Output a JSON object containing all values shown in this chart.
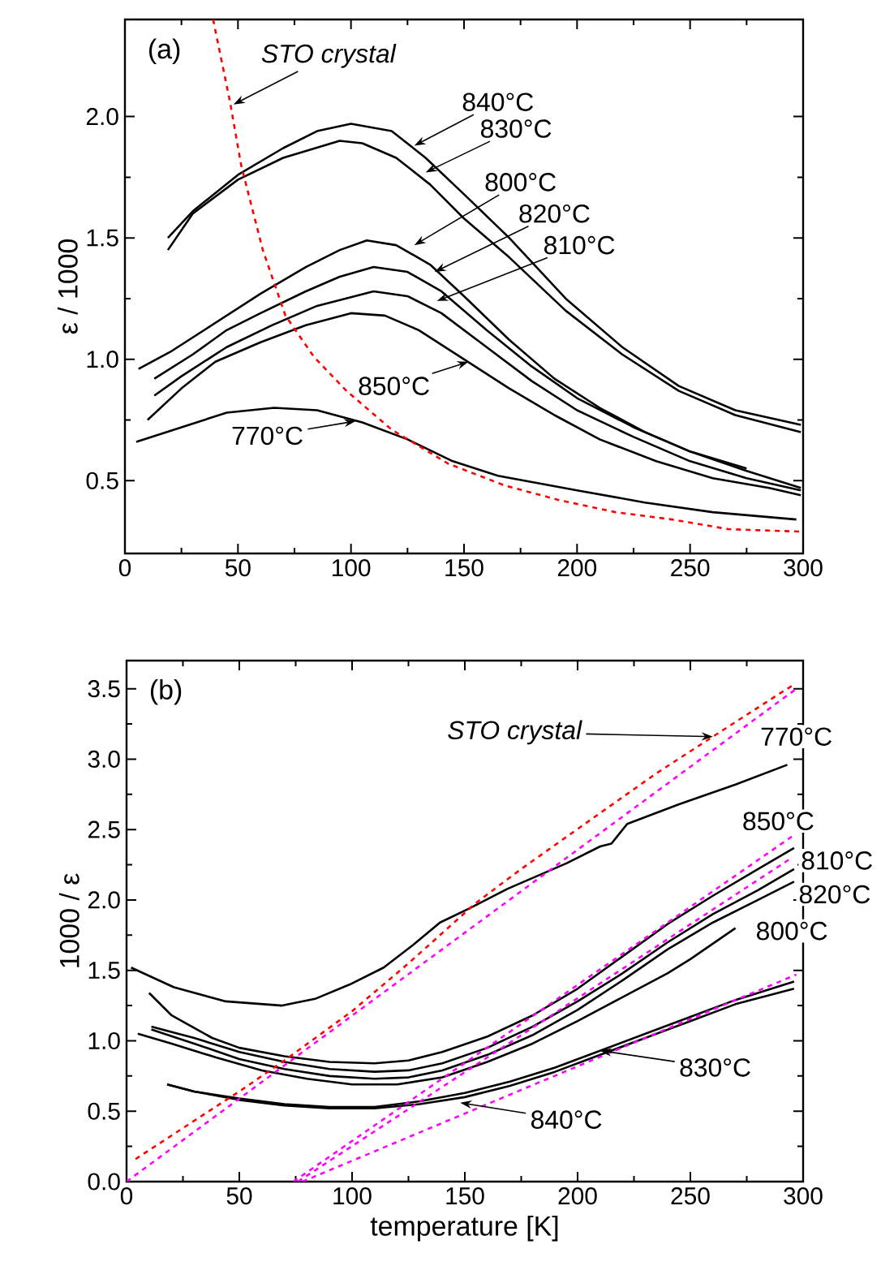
{
  "chart_data": [
    {
      "type": "line",
      "ylabel": "ε / 1000",
      "xlim": [
        0,
        300
      ],
      "ylim": [
        0.2,
        2.4
      ],
      "xticks": [
        0,
        50,
        100,
        150,
        200,
        250,
        300
      ],
      "yticks": [
        0.5,
        {
          "value": 1,
          "label": "1.0"
        },
        1.5,
        {
          "value": 2,
          "label": "2.0"
        }
      ],
      "series": [
        {
          "color": "#000000",
          "x": [
            19,
            30,
            50,
            70,
            85,
            100,
            118,
            133,
            150,
            170,
            195,
            220,
            245,
            270,
            299
          ],
          "values": [
            1.5,
            1.61,
            1.76,
            1.87,
            1.94,
            1.97,
            1.94,
            1.83,
            1.68,
            1.5,
            1.25,
            1.05,
            0.89,
            0.79,
            0.73
          ]
        },
        {
          "color": "#000000",
          "x": [
            19,
            30,
            50,
            70,
            95,
            105,
            120,
            135,
            150,
            170,
            195,
            220,
            245,
            270,
            299
          ],
          "values": [
            1.45,
            1.6,
            1.74,
            1.83,
            1.9,
            1.89,
            1.83,
            1.72,
            1.58,
            1.42,
            1.2,
            1.02,
            0.87,
            0.77,
            0.7
          ]
        },
        {
          "color": "#000000",
          "x": [
            6,
            20,
            40,
            60,
            80,
            95,
            107,
            120,
            135,
            150,
            170,
            190,
            210,
            230,
            250,
            275
          ],
          "values": [
            0.96,
            1.03,
            1.15,
            1.27,
            1.38,
            1.45,
            1.49,
            1.47,
            1.39,
            1.26,
            1.08,
            0.92,
            0.8,
            0.7,
            0.62,
            0.55
          ]
        },
        {
          "color": "#000000",
          "x": [
            13,
            30,
            45,
            60,
            80,
            95,
            110,
            125,
            140,
            160,
            180,
            200,
            225,
            250,
            275,
            299
          ],
          "values": [
            0.92,
            1.02,
            1.12,
            1.19,
            1.28,
            1.34,
            1.38,
            1.36,
            1.28,
            1.12,
            0.97,
            0.84,
            0.72,
            0.62,
            0.54,
            0.47
          ]
        },
        {
          "color": "#000000",
          "x": [
            13,
            25,
            45,
            65,
            85,
            110,
            125,
            140,
            160,
            180,
            200,
            225,
            250,
            275,
            299
          ],
          "values": [
            0.85,
            0.93,
            1.05,
            1.14,
            1.22,
            1.28,
            1.26,
            1.19,
            1.05,
            0.91,
            0.79,
            0.68,
            0.58,
            0.51,
            0.46
          ]
        },
        {
          "color": "#000000",
          "x": [
            10,
            25,
            40,
            60,
            80,
            100,
            115,
            130,
            150,
            170,
            190,
            210,
            235,
            260,
            285,
            299
          ],
          "values": [
            0.75,
            0.88,
            0.99,
            1.07,
            1.14,
            1.19,
            1.18,
            1.12,
            1.0,
            0.88,
            0.77,
            0.67,
            0.58,
            0.51,
            0.47,
            0.44
          ]
        },
        {
          "color": "#000000",
          "x": [
            5,
            25,
            45,
            66,
            85,
            105,
            125,
            145,
            165,
            200,
            230,
            260,
            297
          ],
          "values": [
            0.66,
            0.72,
            0.78,
            0.8,
            0.79,
            0.74,
            0.67,
            0.58,
            0.52,
            0.46,
            0.41,
            0.37,
            0.34
          ]
        },
        {
          "color": "#ff0000",
          "line_style": "dashed",
          "x": [
            39,
            46.5,
            51.4,
            61,
            71,
            83.6,
            98,
            118,
            143,
            168,
            192,
            217,
            242,
            267,
            299
          ],
          "values": [
            2.4,
            2.06,
            1.8,
            1.45,
            1.18,
            1.01,
            0.87,
            0.71,
            0.57,
            0.48,
            0.42,
            0.37,
            0.34,
            0.3,
            0.29
          ]
        }
      ],
      "annotations": [
        "(a)",
        {
          "text": "STO crystal",
          "x": 48,
          "y": 2.05
        },
        {
          "text": "840°C",
          "x": 128,
          "y": 1.88
        },
        {
          "text": "830°C",
          "x": 133,
          "y": 1.77
        },
        {
          "text": "800°C",
          "x": 128,
          "y": 1.47
        },
        {
          "text": "820°C",
          "x": 137,
          "y": 1.36
        },
        {
          "text": "810°C",
          "x": 138,
          "y": 1.24
        },
        {
          "text": "850°C",
          "x": 152,
          "y": 0.99
        },
        {
          "text": "770°C",
          "x": 102,
          "y": 0.745
        }
      ]
    },
    {
      "type": "line",
      "xlabel": "temperature [K]",
      "ylabel": "1000 / ε",
      "xlim": [
        0,
        300
      ],
      "ylim": [
        0,
        3.7
      ],
      "xticks": [
        0,
        50,
        100,
        150,
        200,
        250,
        300
      ],
      "yticks": [
        {
          "value": 0,
          "label": "0.0"
        },
        0.5,
        {
          "value": 1,
          "label": "1.0"
        },
        1.5,
        {
          "value": 2,
          "label": "2.0"
        },
        2.5,
        {
          "value": 3,
          "label": "3.0"
        },
        3.5
      ],
      "series": [
        {
          "color": "#000000",
          "x": [
            2,
            21,
            44,
            69,
            84,
            99,
            114,
            127,
            139,
            152,
            169,
            195,
            210,
            215,
            222,
            245,
            270,
            293
          ],
          "values": [
            1.52,
            1.38,
            1.28,
            1.25,
            1.3,
            1.4,
            1.52,
            1.68,
            1.84,
            1.94,
            2.08,
            2.26,
            2.38,
            2.4,
            2.54,
            2.68,
            2.82,
            2.96
          ]
        },
        {
          "color": "#000000",
          "x": [
            10,
            20,
            38,
            50,
            70,
            90,
            110,
            125,
            140,
            160,
            180,
            200,
            220,
            240,
            260,
            280,
            296
          ],
          "values": [
            1.34,
            1.18,
            1.02,
            0.95,
            0.89,
            0.85,
            0.84,
            0.86,
            0.92,
            1.03,
            1.18,
            1.37,
            1.6,
            1.83,
            2.03,
            2.22,
            2.37
          ]
        },
        {
          "color": "#000000",
          "x": [
            11,
            30,
            50,
            70,
            90,
            110,
            125,
            140,
            160,
            180,
            200,
            220,
            240,
            260,
            280,
            296
          ],
          "values": [
            1.1,
            1.02,
            0.92,
            0.85,
            0.8,
            0.78,
            0.79,
            0.84,
            0.95,
            1.1,
            1.28,
            1.48,
            1.7,
            1.9,
            2.07,
            2.22
          ]
        },
        {
          "color": "#000000",
          "x": [
            11,
            30,
            50,
            70,
            90,
            110,
            125,
            140,
            160,
            180,
            200,
            220,
            240,
            260,
            280,
            296
          ],
          "values": [
            1.08,
            0.98,
            0.87,
            0.8,
            0.75,
            0.73,
            0.74,
            0.79,
            0.9,
            1.04,
            1.22,
            1.43,
            1.65,
            1.84,
            2.0,
            2.13
          ]
        },
        {
          "color": "#000000",
          "x": [
            5,
            20,
            40,
            60,
            80,
            100,
            120,
            140,
            160,
            180,
            200,
            220,
            240,
            250,
            270
          ],
          "values": [
            1.05,
            0.98,
            0.88,
            0.79,
            0.73,
            0.69,
            0.69,
            0.74,
            0.85,
            0.98,
            1.14,
            1.31,
            1.48,
            1.58,
            1.8
          ]
        },
        {
          "color": "#000000",
          "x": [
            18,
            30,
            50,
            70,
            90,
            110,
            130,
            150,
            170,
            190,
            210,
            230,
            250,
            270,
            296
          ],
          "values": [
            0.69,
            0.64,
            0.58,
            0.54,
            0.52,
            0.52,
            0.55,
            0.6,
            0.68,
            0.78,
            0.9,
            1.02,
            1.14,
            1.26,
            1.37
          ]
        },
        {
          "color": "#000000",
          "x": [
            18,
            30,
            50,
            70,
            90,
            110,
            130,
            150,
            170,
            190,
            210,
            230,
            250,
            270,
            296
          ],
          "values": [
            0.69,
            0.64,
            0.59,
            0.55,
            0.53,
            0.53,
            0.57,
            0.63,
            0.71,
            0.81,
            0.93,
            1.05,
            1.17,
            1.29,
            1.42
          ]
        },
        {
          "color": "#ff0000",
          "line_style": "dashed",
          "x": [
            4,
            25,
            50,
            70,
            100,
            125,
            155,
            175,
            212,
            235,
            260,
            289,
            295
          ],
          "values": [
            0.16,
            0.38,
            0.64,
            0.86,
            1.21,
            1.55,
            1.98,
            2.22,
            2.64,
            2.9,
            3.16,
            3.46,
            3.52
          ]
        },
        {
          "color": "#ff00ff",
          "line_style": "dashed",
          "x": [
            0,
            297
          ],
          "values": [
            0,
            3.5
          ]
        },
        {
          "color": "#ff00ff",
          "line_style": "dashed",
          "x": [
            74,
            295
          ],
          "values": [
            0,
            2.45
          ]
        },
        {
          "color": "#ff00ff",
          "line_style": "dashed",
          "x": [
            76,
            295
          ],
          "values": [
            0,
            2.3
          ]
        },
        {
          "color": "#ff00ff",
          "line_style": "dashed",
          "x": [
            78,
            297
          ],
          "values": [
            0,
            1.47
          ]
        }
      ],
      "annotations": [
        "(b)",
        "STO crystal",
        {
          "text": "770°C",
          "x": 293,
          "y": 2.96
        },
        {
          "text": "850°C",
          "x": 294,
          "y": 2.38
        },
        {
          "text": "810°C",
          "x": 296,
          "y": 2.22
        },
        {
          "text": "820°C",
          "x": 296,
          "y": 2.13
        },
        {
          "text": "800°C",
          "x": 270,
          "y": 1.8
        },
        "830°C",
        {
          "text": "840°C",
          "x": 148,
          "y": 0.56
        }
      ]
    }
  ]
}
